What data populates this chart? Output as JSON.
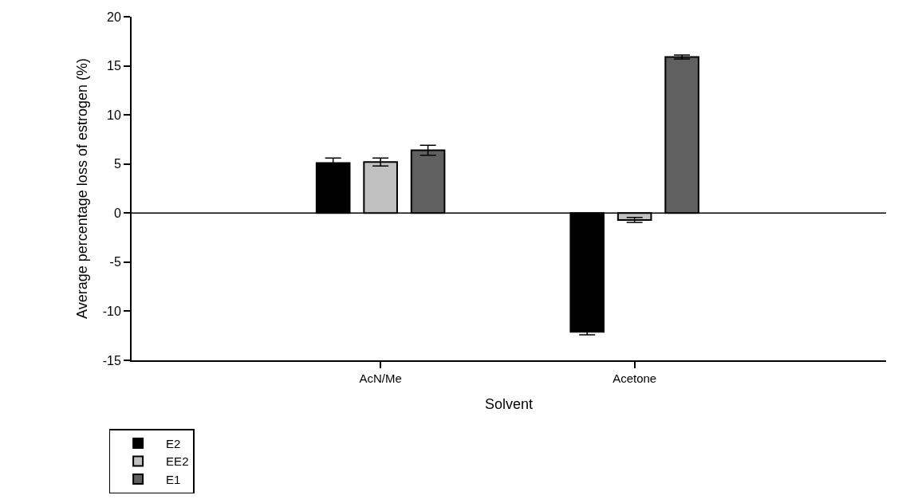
{
  "chart_data": {
    "type": "bar",
    "xlabel": "Solvent",
    "ylabel": "Average percentage loss of estrogen (%)",
    "categories": [
      "AcN/Me",
      "Acetone"
    ],
    "series": [
      {
        "name": "E2",
        "color": "#000000",
        "values": [
          5.1,
          -12.1
        ],
        "errors": [
          0.5,
          0.3
        ]
      },
      {
        "name": "EE2",
        "color": "#c0c0c0",
        "values": [
          5.2,
          -0.7
        ],
        "errors": [
          0.4,
          0.25
        ]
      },
      {
        "name": "E1",
        "color": "#606060",
        "values": [
          6.4,
          15.9
        ],
        "errors": [
          0.5,
          0.2
        ]
      }
    ],
    "ylim": [
      -15,
      20
    ],
    "yticks": [
      -15,
      -10,
      -5,
      0,
      5,
      10,
      15,
      20
    ],
    "ref_lines": [
      {
        "axis": "y",
        "value": 0,
        "color": "#000000"
      }
    ],
    "legend": "bottom left"
  }
}
